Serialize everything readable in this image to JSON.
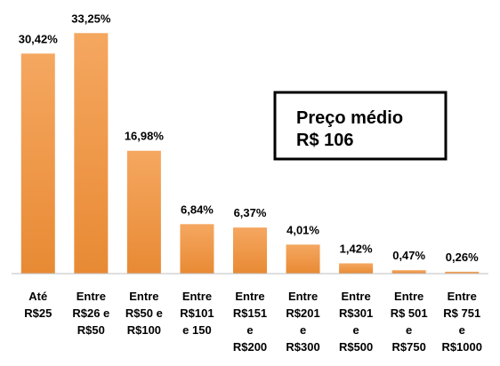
{
  "chart_data": {
    "type": "bar",
    "categories": [
      [
        "Até",
        "R$25"
      ],
      [
        "Entre",
        "R$26 e",
        "R$50"
      ],
      [
        "Entre",
        "R$50 e",
        "R$100"
      ],
      [
        "Entre",
        "R$101",
        "e 150"
      ],
      [
        "Entre",
        "R$151",
        "e",
        "R$200"
      ],
      [
        "Entre",
        "R$201",
        "e",
        "R$300"
      ],
      [
        "Entre",
        "R$301",
        "e",
        "R$500"
      ],
      [
        "Entre",
        "R$ 501",
        "e",
        "R$750"
      ],
      [
        "Entre",
        "R$ 751",
        "e",
        "R$1000"
      ]
    ],
    "values": [
      30.42,
      33.25,
      16.98,
      6.84,
      6.37,
      4.01,
      1.42,
      0.47,
      0.26
    ],
    "value_labels": [
      "30,42%",
      "33,25%",
      "16,98%",
      "6,84%",
      "6,37%",
      "4,01%",
      "1,42%",
      "0,47%",
      "0,26%"
    ],
    "color": "#f09a4a",
    "ylim": [
      0,
      35
    ],
    "annotation": [
      "Preço médio",
      "R$ 106"
    ]
  }
}
